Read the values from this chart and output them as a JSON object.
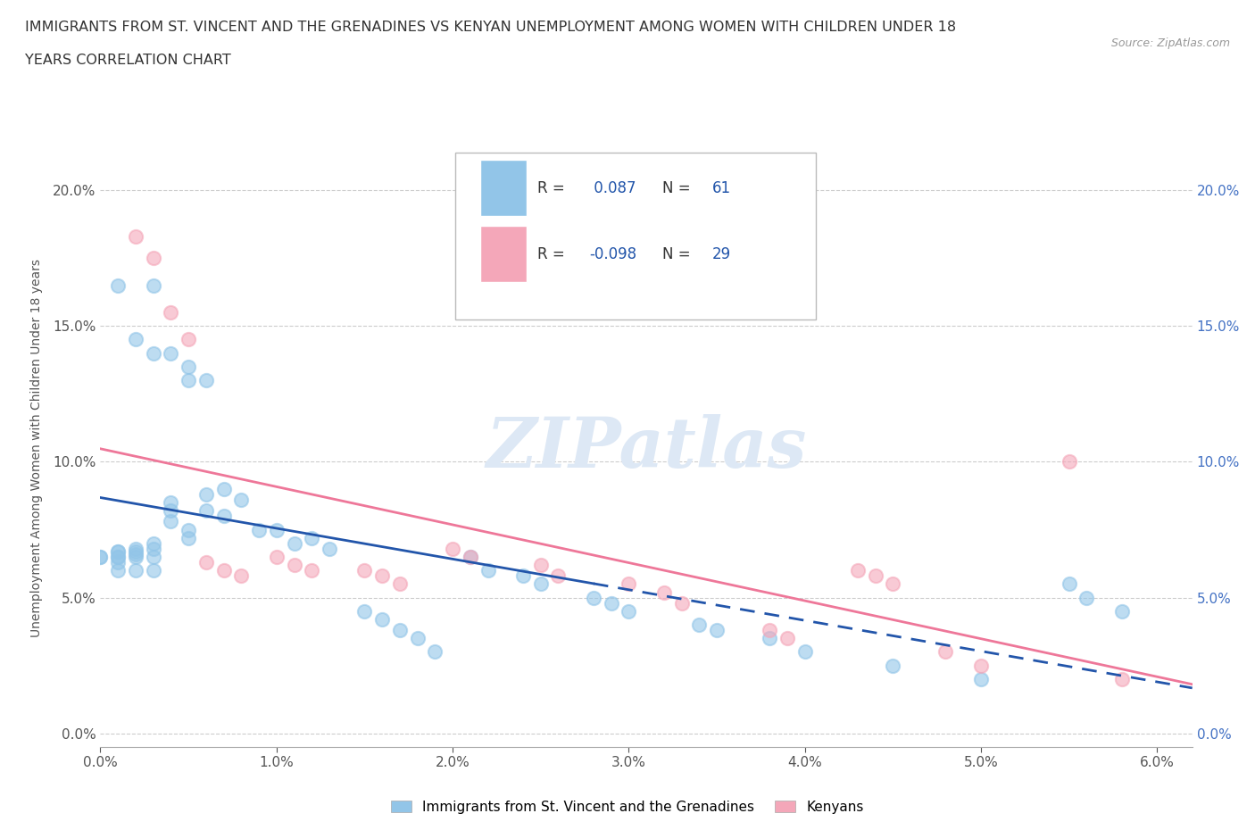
{
  "title_line1": "IMMIGRANTS FROM ST. VINCENT AND THE GRENADINES VS KENYAN UNEMPLOYMENT AMONG WOMEN WITH CHILDREN UNDER 18",
  "title_line2": "YEARS CORRELATION CHART",
  "source": "Source: ZipAtlas.com",
  "ylabel": "Unemployment Among Women with Children Under 18 years",
  "xlim": [
    0.0,
    0.062
  ],
  "ylim": [
    -0.005,
    0.215
  ],
  "xticks": [
    0.0,
    0.01,
    0.02,
    0.03,
    0.04,
    0.05,
    0.06
  ],
  "yticks": [
    0.0,
    0.05,
    0.1,
    0.15,
    0.2
  ],
  "ytick_labels": [
    "0.0%",
    "5.0%",
    "10.0%",
    "15.0%",
    "20.0%"
  ],
  "xtick_labels": [
    "0.0%",
    "1.0%",
    "2.0%",
    "3.0%",
    "4.0%",
    "5.0%",
    "6.0%"
  ],
  "blue_color": "#92C5E8",
  "pink_color": "#F4A7B9",
  "blue_line_color": "#2255AA",
  "pink_line_color": "#EE7799",
  "r_blue": 0.087,
  "n_blue": 61,
  "r_pink": -0.098,
  "n_pink": 29,
  "legend_label_blue": "Immigrants from St. Vincent and the Grenadines",
  "legend_label_pink": "Kenyans",
  "blue_scatter_x": [
    0.001,
    0.003,
    0.002,
    0.003,
    0.004,
    0.005,
    0.005,
    0.006,
    0.0,
    0.0,
    0.001,
    0.001,
    0.001,
    0.001,
    0.001,
    0.001,
    0.002,
    0.002,
    0.002,
    0.002,
    0.002,
    0.003,
    0.003,
    0.003,
    0.003,
    0.004,
    0.004,
    0.004,
    0.005,
    0.005,
    0.006,
    0.006,
    0.007,
    0.007,
    0.008,
    0.009,
    0.01,
    0.011,
    0.012,
    0.013,
    0.015,
    0.016,
    0.017,
    0.018,
    0.019,
    0.021,
    0.022,
    0.024,
    0.025,
    0.028,
    0.029,
    0.03,
    0.034,
    0.035,
    0.038,
    0.04,
    0.045,
    0.05,
    0.055,
    0.056,
    0.058
  ],
  "blue_scatter_y": [
    0.165,
    0.165,
    0.145,
    0.14,
    0.14,
    0.135,
    0.13,
    0.13,
    0.065,
    0.065,
    0.067,
    0.067,
    0.065,
    0.065,
    0.063,
    0.06,
    0.068,
    0.067,
    0.066,
    0.065,
    0.06,
    0.07,
    0.068,
    0.065,
    0.06,
    0.085,
    0.082,
    0.078,
    0.075,
    0.072,
    0.088,
    0.082,
    0.09,
    0.08,
    0.086,
    0.075,
    0.075,
    0.07,
    0.072,
    0.068,
    0.045,
    0.042,
    0.038,
    0.035,
    0.03,
    0.065,
    0.06,
    0.058,
    0.055,
    0.05,
    0.048,
    0.045,
    0.04,
    0.038,
    0.035,
    0.03,
    0.025,
    0.02,
    0.055,
    0.05,
    0.045
  ],
  "pink_scatter_x": [
    0.002,
    0.003,
    0.004,
    0.005,
    0.006,
    0.007,
    0.008,
    0.01,
    0.011,
    0.012,
    0.015,
    0.016,
    0.017,
    0.02,
    0.021,
    0.025,
    0.026,
    0.03,
    0.032,
    0.033,
    0.038,
    0.039,
    0.043,
    0.044,
    0.045,
    0.048,
    0.05,
    0.055,
    0.058
  ],
  "pink_scatter_y": [
    0.183,
    0.175,
    0.155,
    0.145,
    0.063,
    0.06,
    0.058,
    0.065,
    0.062,
    0.06,
    0.06,
    0.058,
    0.055,
    0.068,
    0.065,
    0.062,
    0.058,
    0.055,
    0.052,
    0.048,
    0.038,
    0.035,
    0.06,
    0.058,
    0.055,
    0.03,
    0.025,
    0.1,
    0.02
  ],
  "background_color": "#FFFFFF",
  "grid_color": "#CCCCCC",
  "blue_line_solid_end": 0.028,
  "blue_line_dashed_start": 0.028
}
